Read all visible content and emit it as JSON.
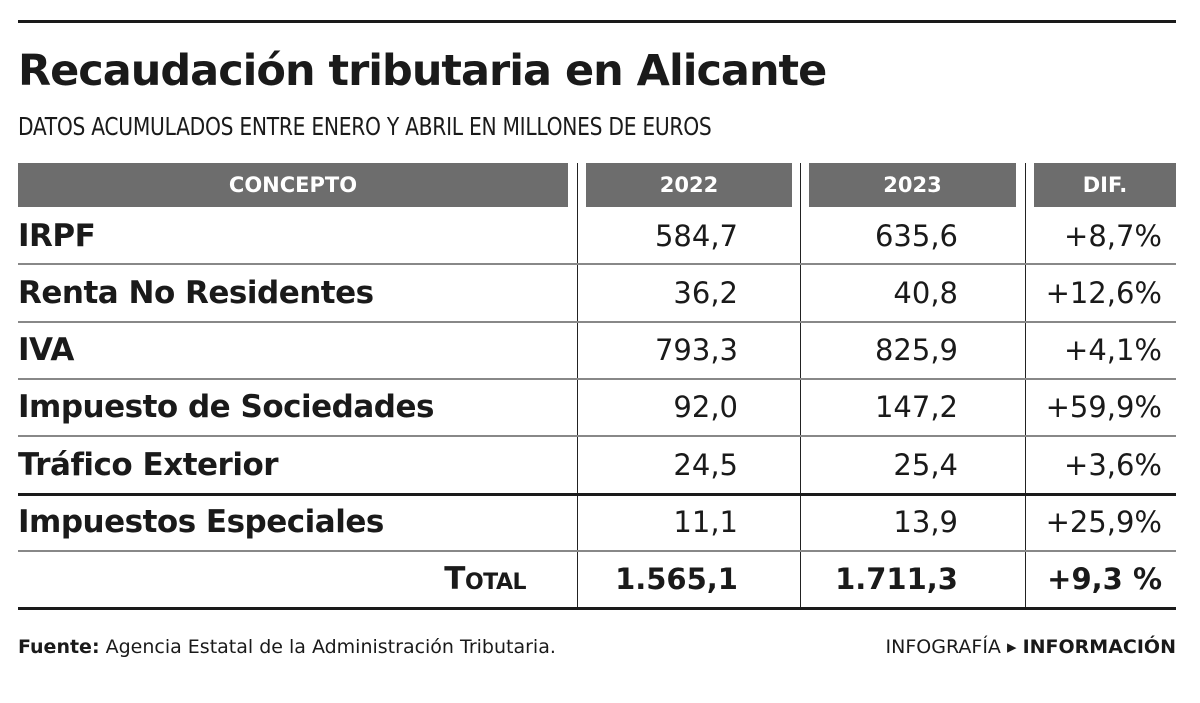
{
  "title": "Recaudación tributaria en Alicante",
  "subtitle": "DATOS ACUMULADOS ENTRE ENERO Y ABRIL EN MILLONES DE EUROS",
  "chart_data": {
    "type": "table",
    "columns": [
      "CONCEPTO",
      "2022",
      "2023",
      "DIF."
    ],
    "rows": [
      [
        "IRPF",
        "584,7",
        "635,6",
        "+8,7%"
      ],
      [
        "Renta No Residentes",
        "36,2",
        "40,8",
        "+12,6%"
      ],
      [
        "IVA",
        "793,3",
        "825,9",
        "+4,1%"
      ],
      [
        "Impuesto de Sociedades",
        "92,0",
        "147,2",
        "+59,9%"
      ],
      [
        "Tráfico Exterior",
        "24,5",
        "25,4",
        "+3,6%"
      ],
      [
        "Impuestos Especiales",
        "11,1",
        "13,9",
        "+25,9%"
      ]
    ],
    "total": [
      "Total",
      "1.565,1",
      "1.711,3",
      "+9,3 %"
    ]
  },
  "footer": {
    "source_label": "Fuente:",
    "source_text": "Agencia Estatal de la Administración Tributaria.",
    "credit_prefix": "INFOGRAFÍA",
    "credit_arrow": "▸",
    "credit_name": "INFORMACIÓN"
  },
  "colors": {
    "header_bg": "#6d6d6d",
    "header_text": "#ffffff",
    "text": "#1a1a1a"
  }
}
